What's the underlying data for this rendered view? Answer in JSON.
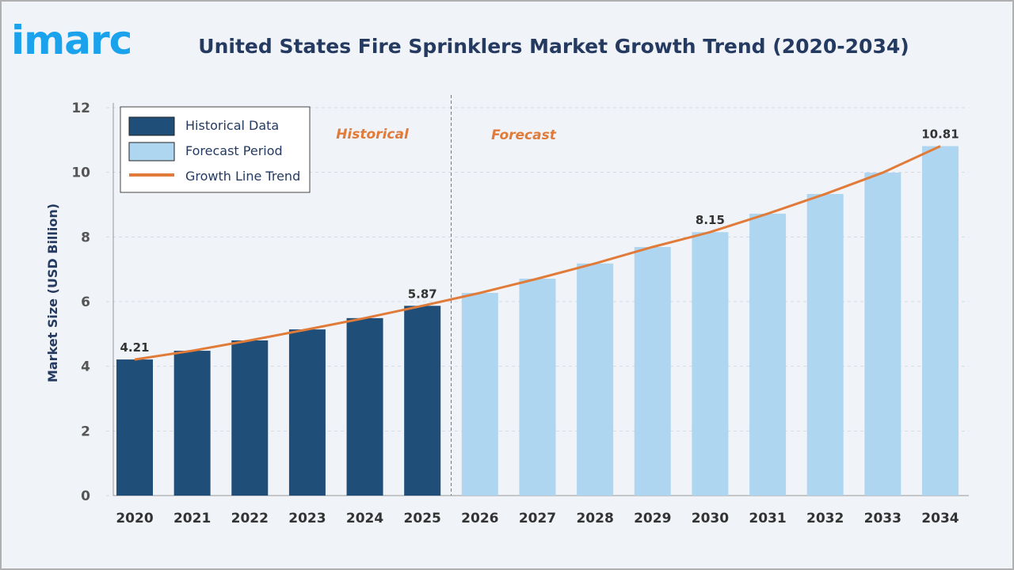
{
  "logo": "imarc",
  "title": "United States Fire Sprinklers Market Growth Trend (2020-2034)",
  "colors": {
    "historical": "#1f4e79",
    "forecast": "#aed6f1",
    "trend": "#e07b39",
    "text": "#253a60"
  },
  "chart_data": {
    "type": "bar",
    "title": "United States Fire Sprinklers Market Growth Trend (2020-2034)",
    "ylabel": "Market Size (USD Billion)",
    "xlabel": "",
    "ylim": [
      0,
      12
    ],
    "yticks": [
      0,
      2,
      4,
      6,
      8,
      10,
      12
    ],
    "grid": true,
    "legend_placement": "top-left",
    "legend": [
      "Historical Data",
      "Forecast Period",
      "Growth Line Trend"
    ],
    "region_labels": {
      "historical": "Historical",
      "forecast": "Forecast"
    },
    "categories": [
      "2020",
      "2021",
      "2022",
      "2023",
      "2024",
      "2025",
      "2026",
      "2027",
      "2028",
      "2029",
      "2030",
      "2031",
      "2032",
      "2033",
      "2034"
    ],
    "values": [
      4.21,
      4.48,
      4.8,
      5.14,
      5.49,
      5.87,
      6.27,
      6.71,
      7.18,
      7.69,
      8.15,
      8.72,
      9.33,
      9.99,
      10.81
    ],
    "historical_count": 6,
    "data_labels": {
      "2020": "4.21",
      "2025": "5.87",
      "2030": "8.15",
      "2034": "10.81"
    }
  }
}
